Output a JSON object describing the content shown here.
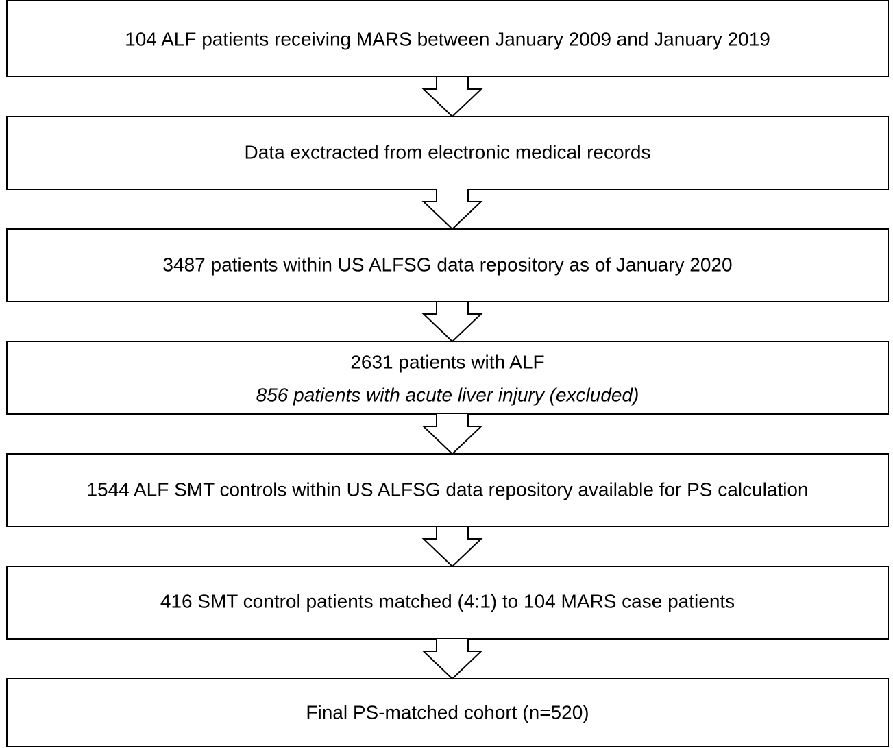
{
  "nodes": [
    {
      "label": "104 ALF patients receiving MARS between January 2009 and January 2019"
    },
    {
      "label": "Data exctracted from electronic medical records"
    },
    {
      "label": "3487 patients within US ALFSG data repository as of January 2020"
    },
    {
      "label": "2631 patients with ALF",
      "note": "856 patients with acute liver injury (excluded)"
    },
    {
      "label": "1544 ALF SMT controls within US ALFSG data repository available for PS calculation"
    },
    {
      "label": "416 SMT control patients matched (4:1) to 104 MARS case patients"
    },
    {
      "label": "Final PS-matched cohort (n=520)"
    }
  ]
}
